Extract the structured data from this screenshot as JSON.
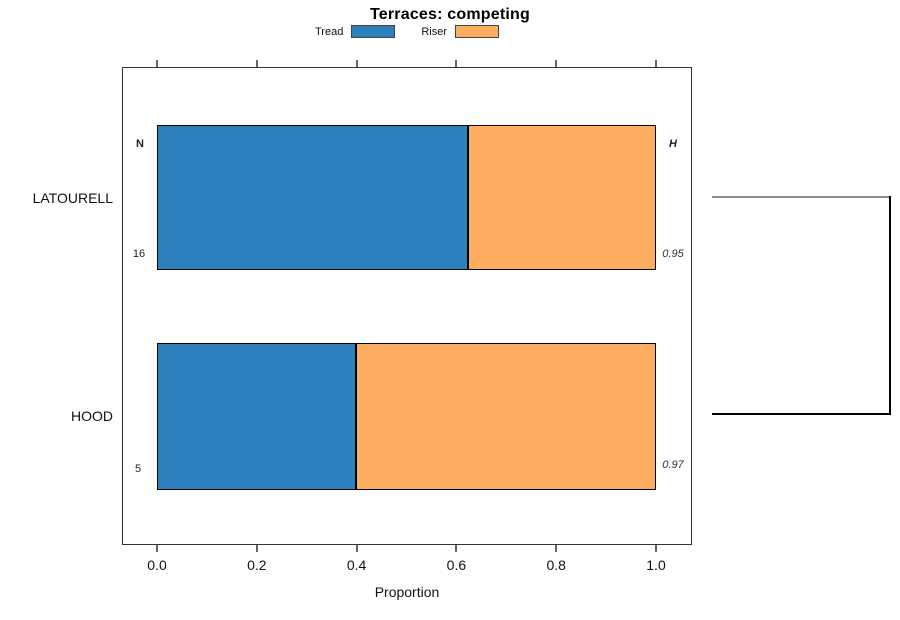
{
  "title": "Terraces: competing",
  "legend": {
    "items": [
      {
        "label": "Tread",
        "color": "#2E80BD"
      },
      {
        "label": "Riser",
        "color": "#FCAD60"
      }
    ]
  },
  "axis": {
    "xlabel": "Proportion",
    "tick_labels": [
      "0.0",
      "0.2",
      "0.4",
      "0.6",
      "0.8",
      "1.0"
    ]
  },
  "annotations": {
    "left_header": "N",
    "right_header": "H",
    "rows": [
      {
        "category": "LATOURELL",
        "n": "16",
        "h": "0.95"
      },
      {
        "category": "HOOD",
        "n": "5",
        "h": "0.97"
      }
    ]
  },
  "chart_data": {
    "type": "bar",
    "orientation": "horizontal",
    "stacked": true,
    "title": "Terraces: competing",
    "xlabel": "Proportion",
    "xlim": [
      0,
      1
    ],
    "grid": false,
    "legend_position": "top",
    "categories": [
      "LATOURELL",
      "HOOD"
    ],
    "series": [
      {
        "name": "Tread",
        "color": "#2E80BD",
        "values": [
          0.625,
          0.4
        ]
      },
      {
        "name": "Riser",
        "color": "#FCAD60",
        "values": [
          0.375,
          0.6
        ]
      }
    ],
    "sample_sizes": {
      "header": "N",
      "values": [
        "16",
        "5"
      ]
    },
    "h_index": {
      "header": "H",
      "values": [
        "0.95",
        "0.97"
      ]
    },
    "right_cluster_bracket": true
  },
  "colors": {
    "tread": "#2E80BD",
    "riser": "#FCAD60",
    "bracket_top": "#8E8E8E",
    "bracket_dark": "#000000",
    "box_border": "#333333"
  }
}
